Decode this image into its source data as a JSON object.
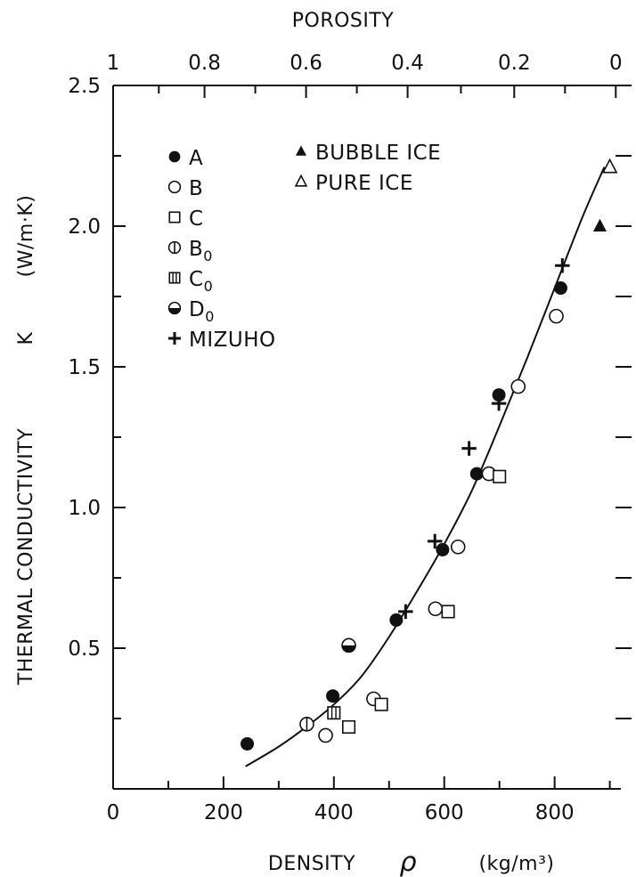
{
  "chart_data": {
    "type": "scatter",
    "top_axis": {
      "label": "POROSITY",
      "ticks": [
        {
          "value": 0,
          "text": "1"
        },
        {
          "value": 0.18,
          "text": "0.8"
        },
        {
          "value": 0.38,
          "text": "0.6"
        },
        {
          "value": 0.58,
          "text": "0.4"
        },
        {
          "value": 0.79,
          "text": "0.2"
        },
        {
          "value": 0.99,
          "text": "0"
        }
      ]
    },
    "xlabel": "DENSITY",
    "xlabel_symbol": "ρ",
    "xlabel_unit": "(kg/m³)",
    "ylabel": "THERMAL CONDUCTIVITY",
    "ylabel_symbol": "K",
    "ylabel_unit": "(W/m·K)",
    "xlim": [
      0,
      920
    ],
    "ylim": [
      0,
      2.5
    ],
    "x_ticks": [
      0,
      200,
      400,
      600,
      800
    ],
    "x_tick_labels": [
      "0",
      "200",
      "400",
      "600",
      "800"
    ],
    "y_ticks": [
      0.5,
      1.0,
      1.5,
      2.0,
      2.5
    ],
    "y_tick_labels": [
      "0.5",
      "1.0",
      "1.5",
      "2.0",
      "2.5"
    ],
    "grid": false,
    "legend_position": "top-left",
    "series": [
      {
        "name": "A",
        "marker": "filled-circle",
        "points": [
          [
            243,
            0.16
          ],
          [
            398,
            0.33
          ],
          [
            513,
            0.6
          ],
          [
            597,
            0.85
          ],
          [
            659,
            1.12
          ],
          [
            699,
            1.4
          ],
          [
            811,
            1.78
          ]
        ]
      },
      {
        "name": "B",
        "marker": "open-circle",
        "points": [
          [
            385,
            0.19
          ],
          [
            472,
            0.32
          ],
          [
            584,
            0.64
          ],
          [
            625,
            0.86
          ],
          [
            681,
            1.12
          ],
          [
            734,
            1.43
          ],
          [
            803,
            1.68
          ]
        ]
      },
      {
        "name": "C",
        "marker": "open-square",
        "points": [
          [
            427,
            0.22
          ],
          [
            486,
            0.3
          ],
          [
            607,
            0.63
          ],
          [
            700,
            1.11
          ]
        ]
      },
      {
        "name": "B0",
        "marker": "circle-vertical-bar",
        "points": [
          [
            351,
            0.23
          ]
        ]
      },
      {
        "name": "C0",
        "marker": "square-vertical-bars",
        "points": [
          [
            400,
            0.27
          ]
        ]
      },
      {
        "name": "D0",
        "marker": "half-filled-circle",
        "points": [
          [
            427,
            0.51
          ]
        ]
      },
      {
        "name": "MIZUHO",
        "marker": "plus",
        "points": [
          [
            530,
            0.63
          ],
          [
            583,
            0.88
          ],
          [
            645,
            1.21
          ],
          [
            699,
            1.37
          ],
          [
            814,
            1.86
          ]
        ]
      },
      {
        "name": "BUBBLE ICE",
        "marker": "filled-triangle",
        "points": [
          [
            882,
            2.0
          ]
        ]
      },
      {
        "name": "PURE ICE",
        "marker": "open-triangle",
        "points": [
          [
            900,
            2.21
          ]
        ]
      }
    ],
    "fit_curve": [
      [
        240,
        0.08
      ],
      [
        300,
        0.15
      ],
      [
        350,
        0.22
      ],
      [
        400,
        0.3
      ],
      [
        450,
        0.4
      ],
      [
        500,
        0.54
      ],
      [
        550,
        0.7
      ],
      [
        600,
        0.87
      ],
      [
        650,
        1.06
      ],
      [
        700,
        1.29
      ],
      [
        750,
        1.53
      ],
      [
        800,
        1.78
      ],
      [
        850,
        2.03
      ],
      [
        890,
        2.21
      ]
    ],
    "legend": [
      {
        "label": "A",
        "marker": "filled-circle"
      },
      {
        "label": "B",
        "marker": "open-circle"
      },
      {
        "label": "C",
        "marker": "open-square"
      },
      {
        "label": "B",
        "subscript": "0",
        "marker": "circle-vertical-bar"
      },
      {
        "label": "C",
        "subscript": "0",
        "marker": "square-vertical-bars"
      },
      {
        "label": "D",
        "subscript": "0",
        "marker": "half-filled-circle"
      },
      {
        "label": "MIZUHO",
        "marker": "plus"
      },
      {
        "label": "BUBBLE ICE",
        "marker": "filled-triangle"
      },
      {
        "label": "PURE ICE",
        "marker": "open-triangle"
      }
    ]
  }
}
